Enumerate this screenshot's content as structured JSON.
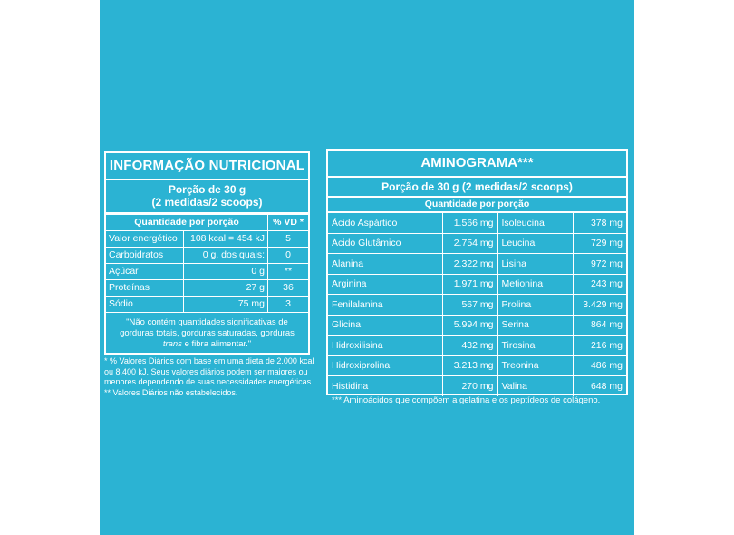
{
  "nutrition": {
    "title": "INFORMAÇÃO NUTRICIONAL",
    "portion_line1": "Porção de 30 g",
    "portion_line2": "(2 medidas/2 scoops)",
    "header_qty": "Quantidade por porção",
    "header_vd": "% VD *",
    "rows": [
      {
        "name": "Valor energético",
        "value": "108 kcal = 454 kJ",
        "vd": "5"
      },
      {
        "name": "Carboidratos",
        "value": "0 g, dos quais:",
        "vd": "0"
      },
      {
        "name": "Açúcar",
        "value": "0 g",
        "vd": "**"
      },
      {
        "name": "Proteínas",
        "value": "27 g",
        "vd": "36"
      },
      {
        "name": "Sódio",
        "value": "75 mg",
        "vd": "3"
      }
    ],
    "note_part1": "\"Não contém quantidades significativas de gorduras totais, gorduras saturadas, gorduras ",
    "note_trans": "trans",
    "note_part2": " e fibra alimentar.\"",
    "footnote1": "* % Valores Diários com base em uma dieta de 2.000 kcal ou 8.400 kJ. Seus valores diários podem ser maiores ou menores dependendo de suas necessidades energéticas.",
    "footnote2": "** Valores Diários não estabelecidos."
  },
  "amino": {
    "title": "AMINOGRAMA***",
    "portion": "Porção de 30 g (2 medidas/2 scoops)",
    "subhead": "Quantidade por porção",
    "rows": [
      {
        "a": "Ácido Aspártico",
        "av": "1.566 mg",
        "b": "Isoleucina",
        "bv": "378 mg"
      },
      {
        "a": "Ácido Glutâmico",
        "av": "2.754 mg",
        "b": "Leucina",
        "bv": "729 mg"
      },
      {
        "a": "Alanina",
        "av": "2.322 mg",
        "b": "Lisina",
        "bv": "972 mg"
      },
      {
        "a": "Arginina",
        "av": "1.971 mg",
        "b": "Metionina",
        "bv": "243 mg"
      },
      {
        "a": "Fenilalanina",
        "av": "567 mg",
        "b": "Prolina",
        "bv": "3.429 mg"
      },
      {
        "a": "Glicina",
        "av": "5.994 mg",
        "b": "Serina",
        "bv": "864 mg"
      },
      {
        "a": "Hidroxilisina",
        "av": "432 mg",
        "b": "Tirosina",
        "bv": "216 mg"
      },
      {
        "a": "Hidroxiprolina",
        "av": "3.213 mg",
        "b": "Treonina",
        "bv": "486 mg"
      },
      {
        "a": "Histidina",
        "av": "270 mg",
        "b": "Valina",
        "bv": "648 mg"
      }
    ],
    "footnote": "*** Aminoácidos que compõem a gelatina e os peptídeos de colágeno."
  },
  "colors": {
    "background": "#2bb3d3",
    "foreground": "#ffffff"
  }
}
